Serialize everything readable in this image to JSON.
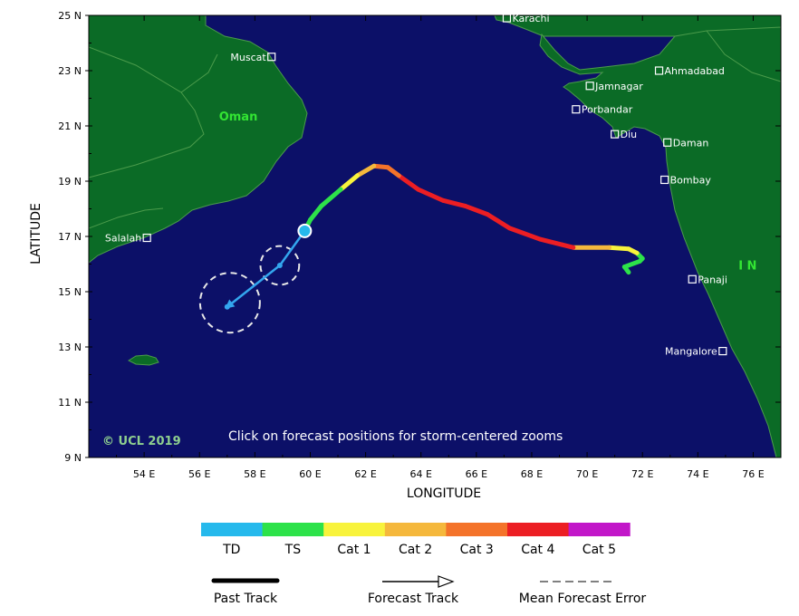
{
  "map": {
    "lon_range": [
      52,
      77
    ],
    "lat_range": [
      9,
      25
    ],
    "ocean_color": "#0c1068",
    "land_color": "#0b6b26",
    "border_color": "#4b9b4b"
  },
  "axes": {
    "xlabel": "LONGITUDE",
    "ylabel": "LATITUDE",
    "x_ticks": [
      {
        "value": 54,
        "label": "54 E"
      },
      {
        "value": 56,
        "label": "56 E"
      },
      {
        "value": 58,
        "label": "58 E"
      },
      {
        "value": 60,
        "label": "60 E"
      },
      {
        "value": 62,
        "label": "62 E"
      },
      {
        "value": 64,
        "label": "64 E"
      },
      {
        "value": 66,
        "label": "66 E"
      },
      {
        "value": 68,
        "label": "68 E"
      },
      {
        "value": 70,
        "label": "70 E"
      },
      {
        "value": 72,
        "label": "72 E"
      },
      {
        "value": 74,
        "label": "74 E"
      },
      {
        "value": 76,
        "label": "76 E"
      }
    ],
    "y_ticks": [
      {
        "value": 25,
        "label": "25 N"
      },
      {
        "value": 23,
        "label": "23 N"
      },
      {
        "value": 21,
        "label": "21 N"
      },
      {
        "value": 19,
        "label": "19 N"
      },
      {
        "value": 17,
        "label": "17 N"
      },
      {
        "value": 15,
        "label": "15 N"
      },
      {
        "value": 13,
        "label": "13 N"
      },
      {
        "value": 11,
        "label": "11 N"
      },
      {
        "value": 9,
        "label": "9 N"
      }
    ]
  },
  "cities": [
    {
      "name": "Karachi",
      "lon": 67.1,
      "lat": 24.9,
      "side": "right"
    },
    {
      "name": "Muscat",
      "lon": 58.6,
      "lat": 23.5,
      "side": "left"
    },
    {
      "name": "Ahmadabad",
      "lon": 72.6,
      "lat": 23.0,
      "side": "right"
    },
    {
      "name": "Jamnagar",
      "lon": 70.1,
      "lat": 22.45,
      "side": "right"
    },
    {
      "name": "Porbandar",
      "lon": 69.6,
      "lat": 21.6,
      "side": "right"
    },
    {
      "name": "Diu",
      "lon": 71.0,
      "lat": 20.7,
      "side": "right"
    },
    {
      "name": "Daman",
      "lon": 72.9,
      "lat": 20.4,
      "side": "right"
    },
    {
      "name": "Bombay",
      "lon": 72.8,
      "lat": 19.05,
      "side": "right"
    },
    {
      "name": "Salalah",
      "lon": 54.1,
      "lat": 16.95,
      "side": "left"
    },
    {
      "name": "Panaji",
      "lon": 73.8,
      "lat": 15.45,
      "side": "right"
    },
    {
      "name": "Mangalore",
      "lon": 74.9,
      "lat": 12.85,
      "side": "left"
    }
  ],
  "region_labels": [
    {
      "text": "Oman",
      "lon": 57.4,
      "lat": 21.2
    },
    {
      "text": "I N",
      "lon": 75.8,
      "lat": 15.8
    }
  ],
  "past_track": [
    {
      "lon": 71.5,
      "lat": 15.7,
      "category": "TS"
    },
    {
      "lon": 71.35,
      "lat": 15.9,
      "category": "TS"
    },
    {
      "lon": 71.9,
      "lat": 16.1,
      "category": "TS"
    },
    {
      "lon": 72.0,
      "lat": 16.2,
      "category": "TS"
    },
    {
      "lon": 71.8,
      "lat": 16.4,
      "category": "TS"
    },
    {
      "lon": 71.5,
      "lat": 16.55,
      "category": "Cat 1"
    },
    {
      "lon": 70.8,
      "lat": 16.6,
      "category": "Cat 1"
    },
    {
      "lon": 69.5,
      "lat": 16.6,
      "category": "Cat 2"
    },
    {
      "lon": 69.1,
      "lat": 16.7,
      "category": "Cat 4"
    },
    {
      "lon": 68.3,
      "lat": 16.9,
      "category": "Cat 4"
    },
    {
      "lon": 67.2,
      "lat": 17.3,
      "category": "Cat 4"
    },
    {
      "lon": 66.4,
      "lat": 17.8,
      "category": "Cat 4"
    },
    {
      "lon": 65.6,
      "lat": 18.1,
      "category": "Cat 4"
    },
    {
      "lon": 64.8,
      "lat": 18.3,
      "category": "Cat 4"
    },
    {
      "lon": 63.9,
      "lat": 18.7,
      "category": "Cat 4"
    },
    {
      "lon": 63.2,
      "lat": 19.2,
      "category": "Cat 4"
    },
    {
      "lon": 62.8,
      "lat": 19.5,
      "category": "Cat 3"
    },
    {
      "lon": 62.3,
      "lat": 19.55,
      "category": "Cat 3"
    },
    {
      "lon": 61.7,
      "lat": 19.2,
      "category": "Cat 2"
    },
    {
      "lon": 61.1,
      "lat": 18.7,
      "category": "Cat 1"
    },
    {
      "lon": 60.4,
      "lat": 18.1,
      "category": "TS"
    },
    {
      "lon": 60.0,
      "lat": 17.6,
      "category": "TS"
    },
    {
      "lon": 59.8,
      "lat": 17.2,
      "category": "TS"
    }
  ],
  "forecast_track": [
    {
      "lon": 59.8,
      "lat": 17.2
    },
    {
      "lon": 58.9,
      "lat": 15.95
    },
    {
      "lon": 57.0,
      "lat": 14.45
    }
  ],
  "forecast_error_circles": [
    {
      "lon": 58.9,
      "lat": 15.95,
      "radius_deg": 0.7
    },
    {
      "lon": 57.1,
      "lat": 14.6,
      "radius_deg": 1.08
    }
  ],
  "current_position": {
    "lon": 59.8,
    "lat": 17.2
  },
  "note": "Click on forecast positions for storm-centered zooms",
  "copyright": "© UCL 2019",
  "category_legend": [
    {
      "label": "TD",
      "color": "#26b9ec"
    },
    {
      "label": "TS",
      "color": "#2de24a"
    },
    {
      "label": "Cat 1",
      "color": "#f8f33c"
    },
    {
      "label": "Cat 2",
      "color": "#f5b83c"
    },
    {
      "label": "Cat 3",
      "color": "#f4732a"
    },
    {
      "label": "Cat 4",
      "color": "#ec1e23"
    },
    {
      "label": "Cat 5",
      "color": "#c217c9"
    }
  ],
  "track_legend": [
    {
      "label": "Past Track",
      "kind": "past"
    },
    {
      "label": "Forecast Track",
      "kind": "forecast"
    },
    {
      "label": "Mean Forecast Error",
      "kind": "error"
    }
  ],
  "colors": {
    "forecast_arrow": "#33a6ee",
    "error_circle": "#e8e8e8",
    "city_marker": "#ffffff"
  }
}
